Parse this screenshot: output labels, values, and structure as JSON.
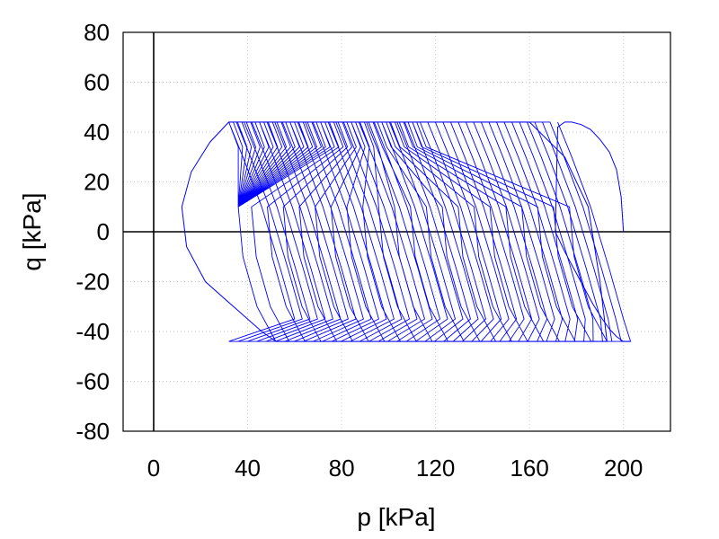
{
  "chart_data": {
    "type": "line",
    "title": "",
    "xlabel": "p [kPa]",
    "ylabel": "q [kPa]",
    "xlim": [
      -13,
      220
    ],
    "ylim": [
      -80,
      80
    ],
    "xticks": [
      0,
      40,
      80,
      120,
      160,
      200
    ],
    "yticks": [
      -80,
      -60,
      -40,
      -20,
      0,
      20,
      40,
      60,
      80
    ],
    "grid": true,
    "zero_lines": true,
    "series_color": "#0000ff",
    "series": [
      {
        "description_hidden": false,
        "x": [
          200,
          199,
          197,
          194,
          190,
          186,
          182,
          178,
          175,
          172,
          171,
          172,
          175,
          179,
          183,
          187,
          191,
          194,
          197,
          200,
          202,
          203
        ],
        "y": [
          0,
          14,
          25,
          32,
          37,
          41,
          43,
          44,
          44,
          42,
          0,
          -2,
          -8,
          -15,
          -22,
          -29,
          -35,
          -39,
          -42,
          -44,
          -44,
          -44
        ]
      },
      {
        "x": [
          32,
          40,
          60,
          80,
          100,
          120,
          140,
          160,
          175,
          185,
          190,
          193
        ],
        "y": [
          44,
          44,
          44,
          44,
          44,
          44,
          44,
          44,
          30,
          10,
          -20,
          -44
        ]
      },
      {
        "x": [
          52,
          60,
          80,
          100,
          120,
          140,
          160,
          180,
          193
        ],
        "y": [
          -44,
          -44,
          -44,
          -44,
          -44,
          -44,
          -44,
          -44,
          -44
        ]
      },
      {
        "x": [
          32,
          24,
          16,
          12,
          14,
          22,
          34,
          46,
          52
        ],
        "y": [
          44,
          36,
          24,
          10,
          -6,
          -20,
          -30,
          -40,
          -44
        ]
      }
    ]
  }
}
